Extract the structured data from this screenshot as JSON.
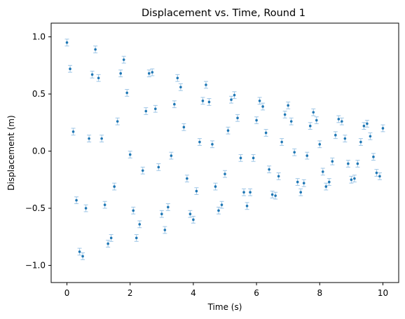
{
  "chart_data": {
    "type": "scatter",
    "title": "Displacement vs. Time, Round 1",
    "xlabel": "Time (s)",
    "ylabel": "Displacement (m)",
    "xlim": [
      -0.5,
      10.5
    ],
    "ylim": [
      -1.15,
      1.12
    ],
    "xticks": [
      0,
      2,
      4,
      6,
      8,
      10
    ],
    "xtick_labels": [
      "0",
      "2",
      "4",
      "6",
      "8",
      "10"
    ],
    "yticks": [
      -1.0,
      -0.5,
      0.0,
      0.5,
      1.0
    ],
    "ytick_labels": [
      "−1.0",
      "−0.5",
      "0.0",
      "0.5",
      "1.0"
    ],
    "grid": false,
    "legend": "none",
    "color": "#1f77b4",
    "error_bar_color": "#9ec6e6",
    "error_bar_halfwidth": 0.03,
    "x": [
      0.0,
      0.1,
      0.2,
      0.3,
      0.4,
      0.5,
      0.6,
      0.7,
      0.8,
      0.9,
      1.0,
      1.1,
      1.2,
      1.3,
      1.4,
      1.5,
      1.6,
      1.7,
      1.8,
      1.9,
      2.0,
      2.1,
      2.2,
      2.3,
      2.4,
      2.5,
      2.6,
      2.7,
      2.8,
      2.9,
      3.0,
      3.1,
      3.2,
      3.3,
      3.4,
      3.5,
      3.6,
      3.7,
      3.8,
      3.9,
      4.0,
      4.1,
      4.2,
      4.3,
      4.4,
      4.5,
      4.6,
      4.7,
      4.8,
      4.9,
      5.0,
      5.1,
      5.2,
      5.3,
      5.4,
      5.5,
      5.6,
      5.7,
      5.8,
      5.9,
      6.0,
      6.1,
      6.2,
      6.3,
      6.4,
      6.5,
      6.6,
      6.7,
      6.8,
      6.9,
      7.0,
      7.1,
      7.2,
      7.3,
      7.4,
      7.5,
      7.6,
      7.7,
      7.8,
      7.9,
      8.0,
      8.1,
      8.2,
      8.3,
      8.4,
      8.5,
      8.6,
      8.7,
      8.8,
      8.9,
      9.0,
      9.1,
      9.2,
      9.3,
      9.4,
      9.5,
      9.6,
      9.7,
      9.8,
      9.9,
      10.0
    ],
    "y": [
      0.95,
      0.72,
      0.17,
      -0.43,
      -0.88,
      -0.92,
      -0.5,
      0.11,
      0.67,
      0.89,
      0.64,
      0.11,
      -0.47,
      -0.81,
      -0.76,
      -0.31,
      0.26,
      0.68,
      0.8,
      0.51,
      -0.03,
      -0.52,
      -0.76,
      -0.64,
      -0.17,
      0.35,
      0.68,
      0.69,
      0.37,
      -0.14,
      -0.55,
      -0.69,
      -0.49,
      -0.04,
      0.41,
      0.64,
      0.56,
      0.21,
      -0.24,
      -0.55,
      -0.6,
      -0.35,
      0.08,
      0.44,
      0.58,
      0.43,
      0.06,
      -0.31,
      -0.52,
      -0.47,
      -0.2,
      0.18,
      0.45,
      0.49,
      0.29,
      -0.06,
      -0.36,
      -0.48,
      -0.36,
      -0.06,
      0.27,
      0.44,
      0.39,
      0.16,
      -0.16,
      -0.38,
      -0.39,
      -0.22,
      0.08,
      0.32,
      0.4,
      0.26,
      -0.01,
      -0.27,
      -0.36,
      -0.28,
      -0.04,
      0.22,
      0.34,
      0.27,
      0.06,
      -0.18,
      -0.31,
      -0.27,
      -0.09,
      0.14,
      0.28,
      0.26,
      0.11,
      -0.11,
      -0.25,
      -0.24,
      -0.11,
      0.08,
      0.22,
      0.24,
      0.13,
      -0.05,
      -0.19,
      -0.22,
      0.2
    ]
  }
}
